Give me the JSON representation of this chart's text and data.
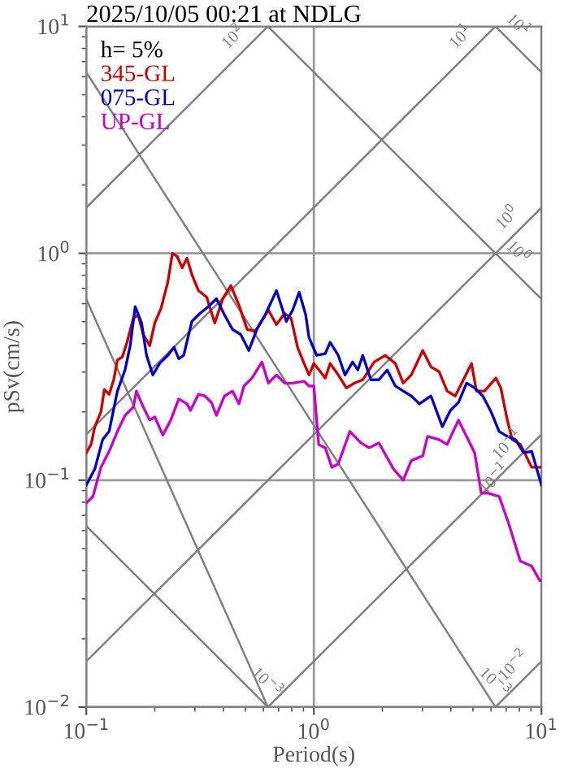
{
  "chart_data": {
    "type": "line",
    "title": "2025/10/05 00:21 at NDLG",
    "xlabel": "Period(s)",
    "ylabel": "pSv(cm/s)",
    "legend_title": "h= 5%",
    "legend": "top left",
    "grid": true,
    "log": "xy",
    "xlim": [
      0.1,
      10
    ],
    "ylim": [
      0.01,
      10
    ],
    "xticks": [
      {
        "value": 0.1,
        "label": "10$^{−1}$"
      },
      {
        "value": 1,
        "label": "10$^{0}$"
      },
      {
        "value": 10,
        "label": "10$^{1}$"
      }
    ],
    "yticks": [
      {
        "value": 0.01,
        "label": "10$^{−2}$"
      },
      {
        "value": 0.1,
        "label": "10$^{−1}$"
      },
      {
        "value": 1,
        "label": "10$^{0}$"
      },
      {
        "value": 10,
        "label": "10$^{1}$"
      }
    ],
    "series": [
      {
        "color": "#808080",
        "x": [
          0.1,
          0.628
        ],
        "values": [
          1.59,
          10
        ]
      },
      {
        "color": "#808080",
        "x": [
          0.1,
          6.28
        ],
        "values": [
          0.159,
          10
        ]
      },
      {
        "color": "#808080",
        "x": [
          0.1,
          10
        ],
        "values": [
          0.0159,
          1.59
        ]
      },
      {
        "color": "#808080",
        "x": [
          0.628,
          10
        ],
        "values": [
          0.01,
          0.159
        ]
      },
      {
        "color": "#808080",
        "x": [
          6.28,
          10
        ],
        "values": [
          0.01,
          0.0159
        ]
      },
      {
        "color": "#808080",
        "x": [
          6.28,
          10
        ],
        "values": [
          10,
          6.28
        ]
      },
      {
        "color": "#808080",
        "x": [
          0.628,
          10
        ],
        "values": [
          10,
          0.628
        ]
      },
      {
        "color": "#808080",
        "x": [
          0.1,
          6.28
        ],
        "values": [
          6.28,
          0.01
        ]
      },
      {
        "color": "#808080",
        "x": [
          0.1,
          0.628
        ],
        "values": [
          0.628,
          0.01
        ]
      },
      {
        "color": "#808080",
        "x": [
          0.1,
          0.628
        ],
        "values": [
          0.0628,
          0.01
        ]
      },
      {
        "name": "345-GL",
        "color": "#d00000",
        "x": [
          0.1,
          0.105,
          0.109,
          0.116,
          0.12,
          0.126,
          0.132,
          0.137,
          0.144,
          0.151,
          0.161,
          0.169,
          0.178,
          0.19,
          0.2,
          0.213,
          0.228,
          0.239,
          0.251,
          0.264,
          0.277,
          0.291,
          0.311,
          0.338,
          0.367,
          0.398,
          0.432,
          0.469,
          0.509,
          0.553,
          0.6,
          0.631,
          0.685,
          0.744,
          0.794,
          0.848,
          0.906,
          0.952,
          1.0,
          1.068,
          1.122,
          1.179,
          1.28,
          1.39,
          1.51,
          1.64,
          1.84,
          2.06,
          2.28,
          2.47,
          2.68,
          3.01,
          3.27,
          3.55,
          3.85,
          4.18,
          4.54,
          4.93,
          5.18,
          5.62,
          6.31,
          6.63,
          7.08,
          7.44,
          8.07,
          9.06,
          10
        ],
        "values": [
          0.132,
          0.144,
          0.172,
          0.2,
          0.251,
          0.239,
          0.277,
          0.338,
          0.349,
          0.405,
          0.518,
          0.535,
          0.439,
          0.392,
          0.493,
          0.572,
          0.744,
          1.0,
          0.967,
          0.863,
          0.952,
          0.807,
          0.685,
          0.641,
          0.493,
          0.631,
          0.72,
          0.59,
          0.462,
          0.454,
          0.518,
          0.562,
          0.485,
          0.544,
          0.518,
          0.385,
          0.327,
          0.291,
          0.327,
          0.301,
          0.282,
          0.327,
          0.291,
          0.255,
          0.268,
          0.277,
          0.332,
          0.355,
          0.327,
          0.268,
          0.291,
          0.373,
          0.316,
          0.301,
          0.247,
          0.235,
          0.277,
          0.327,
          0.247,
          0.247,
          0.282,
          0.255,
          0.184,
          0.151,
          0.144,
          0.114,
          0.114
        ]
      },
      {
        "name": "075-GL",
        "color": "#0000cc",
        "x": [
          0.1,
          0.109,
          0.118,
          0.126,
          0.137,
          0.148,
          0.156,
          0.164,
          0.175,
          0.184,
          0.196,
          0.21,
          0.228,
          0.243,
          0.255,
          0.268,
          0.291,
          0.316,
          0.343,
          0.373,
          0.405,
          0.439,
          0.477,
          0.518,
          0.562,
          0.611,
          0.685,
          0.757,
          0.807,
          0.862,
          0.921,
          0.952,
          1.03,
          1.122,
          1.179,
          1.28,
          1.37,
          1.48,
          1.56,
          1.64,
          1.78,
          1.93,
          2.1,
          2.28,
          2.47,
          2.68,
          2.91,
          3.27,
          3.67,
          3.98,
          4.32,
          4.69,
          5.09,
          5.53,
          6.01,
          6.52,
          7.08,
          7.69,
          8.35,
          9.06,
          10
        ],
        "values": [
          0.0952,
          0.112,
          0.151,
          0.164,
          0.247,
          0.306,
          0.392,
          0.581,
          0.493,
          0.355,
          0.291,
          0.327,
          0.355,
          0.385,
          0.343,
          0.355,
          0.501,
          0.544,
          0.581,
          0.631,
          0.535,
          0.462,
          0.439,
          0.373,
          0.462,
          0.535,
          0.685,
          0.501,
          0.562,
          0.674,
          0.535,
          0.425,
          0.355,
          0.361,
          0.405,
          0.355,
          0.291,
          0.332,
          0.306,
          0.355,
          0.277,
          0.277,
          0.306,
          0.26,
          0.247,
          0.235,
          0.217,
          0.235,
          0.172,
          0.203,
          0.22,
          0.268,
          0.255,
          0.235,
          0.2,
          0.164,
          0.156,
          0.151,
          0.132,
          0.134,
          0.0952
        ]
      },
      {
        "name": "UP-GL",
        "color": "#cc00cc",
        "x": [
          0.1,
          0.107,
          0.116,
          0.126,
          0.137,
          0.148,
          0.161,
          0.166,
          0.178,
          0.19,
          0.2,
          0.217,
          0.235,
          0.255,
          0.277,
          0.287,
          0.311,
          0.332,
          0.355,
          0.373,
          0.405,
          0.439,
          0.469,
          0.493,
          0.535,
          0.591,
          0.631,
          0.685,
          0.744,
          0.807,
          0.906,
          0.952,
          1.0,
          1.05,
          1.122,
          1.2,
          1.28,
          1.44,
          1.61,
          1.75,
          1.93,
          2.24,
          2.47,
          2.68,
          3.01,
          3.16,
          3.55,
          3.85,
          4.32,
          4.69,
          5.09,
          5.44,
          5.81,
          6.52,
          7.19,
          8.07,
          9.06,
          9.84,
          10
        ],
        "values": [
          0.0794,
          0.0848,
          0.114,
          0.134,
          0.164,
          0.193,
          0.21,
          0.247,
          0.21,
          0.184,
          0.19,
          0.158,
          0.184,
          0.228,
          0.217,
          0.203,
          0.239,
          0.235,
          0.22,
          0.193,
          0.235,
          0.247,
          0.217,
          0.26,
          0.282,
          0.332,
          0.268,
          0.291,
          0.268,
          0.268,
          0.273,
          0.26,
          0.26,
          0.1436,
          0.139,
          0.114,
          0.118,
          0.164,
          0.146,
          0.139,
          0.146,
          0.112,
          0.1,
          0.122,
          0.128,
          0.156,
          0.151,
          0.1436,
          0.184,
          0.156,
          0.132,
          0.0877,
          0.0877,
          0.0848,
          0.0641,
          0.044,
          0.0418,
          0.0361,
          0.0361
        ]
      }
    ],
    "annotations": [
      {
        "text": "10$^{2}$",
        "x": 0.5,
        "y": 7.96
      },
      {
        "text": "10$^{1}$",
        "x": 5,
        "y": 7.96
      },
      {
        "text": "10$^{1}$",
        "x": 7,
        "y": 8.97
      },
      {
        "text": "10$^{0}$",
        "x": 8,
        "y": 1.27
      },
      {
        "text": "10$^{0}$",
        "x": 7,
        "y": 0.897
      },
      {
        "text": "10$^{−1}$",
        "x": 8,
        "y": 0.127
      },
      {
        "text": "10$^{−1}$",
        "x": 7,
        "y": 0.0897
      },
      {
        "text": "10$^{−3}$",
        "x": 0.55,
        "y": 0.0114
      },
      {
        "text": "10$^{−3}$",
        "x": 5.5,
        "y": 0.0114
      },
      {
        "text": "10$^{−2}$",
        "x": 8.5,
        "y": 0.0135
      }
    ]
  }
}
